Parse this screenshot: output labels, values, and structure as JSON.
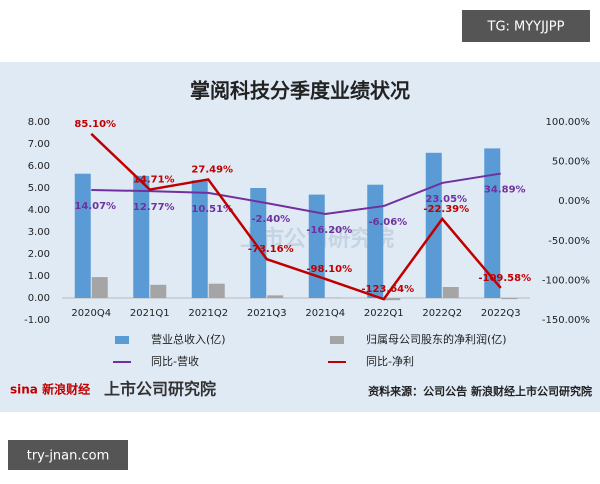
{
  "watermark": "TG: MYYJJPP",
  "site": "try-jnan.com",
  "branding": {
    "logo": "sina 新浪财经",
    "institute": "上市公司研究院"
  },
  "chart_data": {
    "type": "bar",
    "title": "掌阅科技分季度业绩状况",
    "source": "资料来源：公司公告 新浪财经上市公司研究院",
    "categories": [
      "2020Q4",
      "2021Q1",
      "2021Q2",
      "2021Q3",
      "2021Q4",
      "2022Q1",
      "2022Q2",
      "2022Q3"
    ],
    "series": [
      {
        "name": "营业总收入(亿)",
        "type": "bar",
        "color": "#5b9bd5",
        "values": [
          5.65,
          5.55,
          5.35,
          5.0,
          4.7,
          5.15,
          6.6,
          6.8
        ]
      },
      {
        "name": "归属母公司股东的净利润(亿)",
        "type": "bar",
        "color": "#a5a5a5",
        "values": [
          0.95,
          0.6,
          0.65,
          0.12,
          0.02,
          -0.1,
          0.5,
          -0.05
        ]
      },
      {
        "name": "同比-营收",
        "type": "line",
        "axis": "y2",
        "color": "#7030a0",
        "values": [
          14.07,
          12.77,
          10.51,
          -2.4,
          -16.2,
          -6.06,
          23.05,
          34.89
        ],
        "value_labels": [
          "14.07%",
          "12.77%",
          "10.51%",
          "-2.40%",
          "-16.20%",
          "-6.06%",
          "23.05%",
          "34.89%"
        ]
      },
      {
        "name": "同比-净利",
        "type": "line",
        "axis": "y2",
        "color": "#c00000",
        "values": [
          85.1,
          14.71,
          27.49,
          -73.16,
          -98.1,
          -123.64,
          -22.39,
          -109.58
        ],
        "value_labels": [
          "85.10%",
          "14.71%",
          "27.49%",
          "-73.16%",
          "-98.10%",
          "-123.64%",
          "-22.39%",
          "-109.58%"
        ]
      }
    ],
    "ylim": [
      -1,
      8
    ],
    "yticks": [
      {
        "value": -1,
        "label": "-1.00"
      },
      {
        "value": 0,
        "label": "0.00"
      },
      {
        "value": 1,
        "label": "1.00"
      },
      {
        "value": 2,
        "label": "2.00"
      },
      {
        "value": 3,
        "label": "3.00"
      },
      {
        "value": 4,
        "label": "4.00"
      },
      {
        "value": 5,
        "label": "5.00"
      },
      {
        "value": 6,
        "label": "6.00"
      },
      {
        "value": 7,
        "label": "7.00"
      },
      {
        "value": 8,
        "label": "8.00"
      }
    ],
    "y2lim": [
      -150,
      100
    ],
    "y2ticks": [
      {
        "value": -150,
        "label": "-150.00%"
      },
      {
        "value": -100,
        "label": "-100.00%"
      },
      {
        "value": -50,
        "label": "-50.00%"
      },
      {
        "value": 0,
        "label": "0.00%"
      },
      {
        "value": 50,
        "label": "50.00%"
      },
      {
        "value": 100,
        "label": "100.00%"
      }
    ]
  }
}
